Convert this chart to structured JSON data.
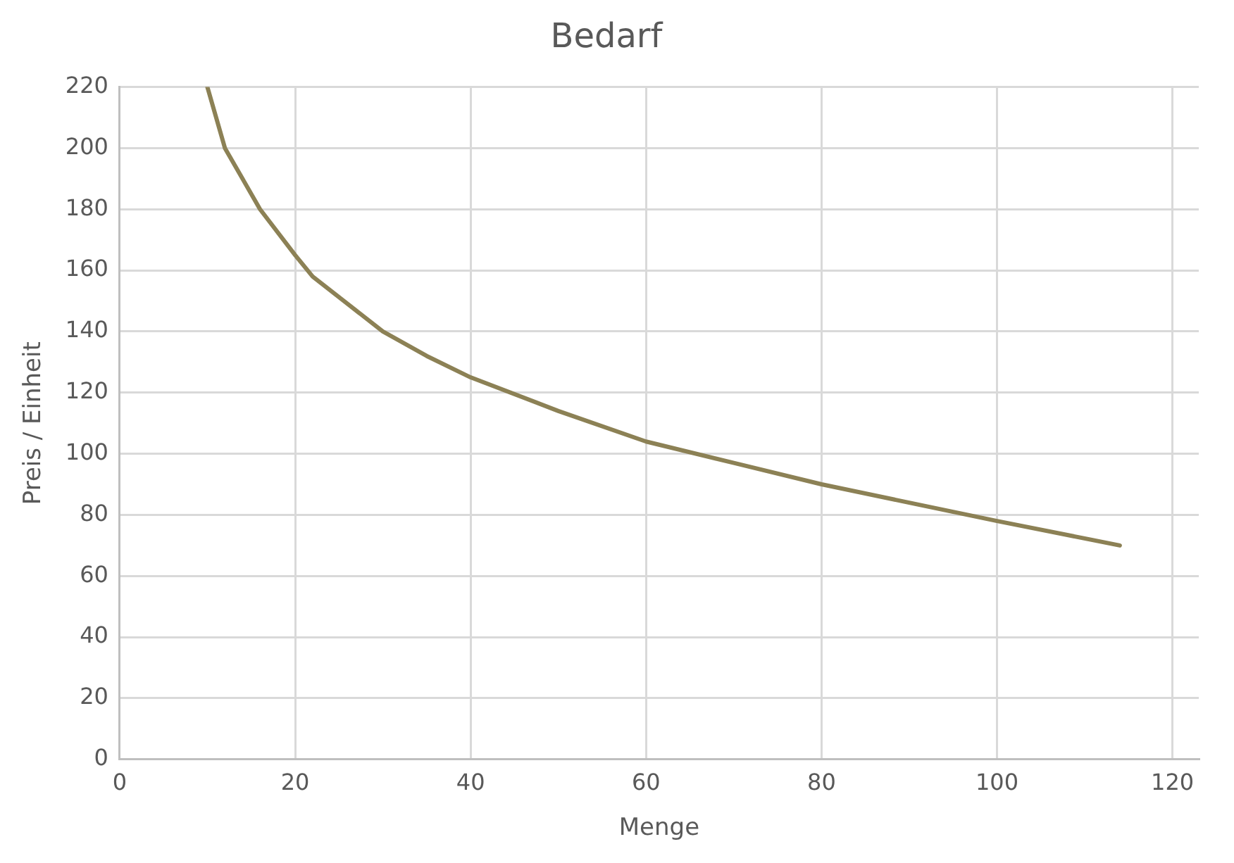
{
  "chart_data": {
    "type": "line",
    "title": "Bedarf",
    "xlabel": "Menge",
    "ylabel": "Preis / Einheit",
    "x": [
      10,
      12,
      14,
      16,
      20,
      22,
      26,
      30,
      35,
      40,
      50,
      60,
      70,
      80,
      90,
      100,
      114
    ],
    "series": [
      {
        "color": "#8c8155",
        "values": [
          220,
          200,
          190,
          180,
          165,
          158,
          149,
          140,
          132,
          125,
          114,
          104,
          97,
          90,
          84,
          78,
          70
        ]
      }
    ],
    "xlim": [
      0,
      123
    ],
    "xticks": [
      0,
      20,
      40,
      60,
      80,
      100,
      120
    ],
    "ylim": [
      0,
      220
    ],
    "yticks": [
      0,
      20,
      40,
      60,
      80,
      100,
      120,
      140,
      160,
      180,
      200,
      220
    ],
    "grid": true,
    "legend": false,
    "marker": "none",
    "line_style": "solid"
  }
}
